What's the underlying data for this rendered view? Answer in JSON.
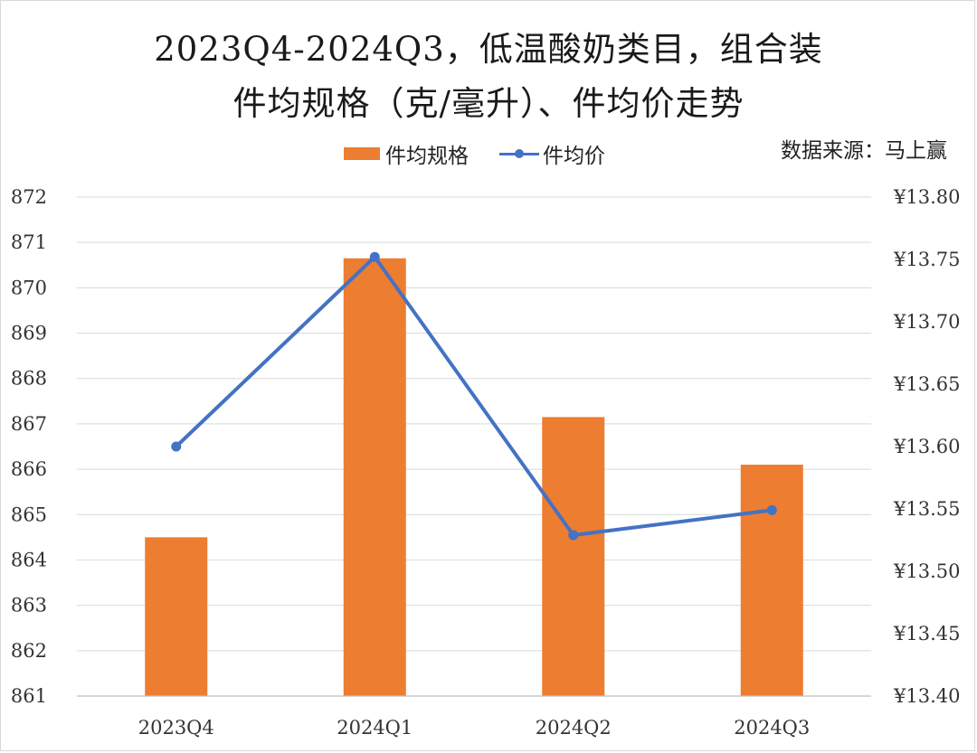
{
  "chart_data": {
    "type": "bar",
    "title": "2023Q4-2024Q3，低温酸奶类目，组合装",
    "subtitle": "件均规格（克/毫升）、件均价走势",
    "source_note": "数据来源：马上赢",
    "categories": [
      "2023Q4",
      "2024Q1",
      "2024Q2",
      "2024Q3"
    ],
    "series": [
      {
        "name": "件均规格",
        "type": "bar",
        "axis": "left",
        "color": "#ED7D31",
        "values": [
          864.5,
          870.65,
          867.15,
          866.1
        ]
      },
      {
        "name": "件均价",
        "type": "line",
        "axis": "right",
        "color": "#4472C4",
        "values": [
          13.6,
          13.752,
          13.529,
          13.549
        ]
      }
    ],
    "left_axis": {
      "min": 861,
      "max": 872,
      "step": 1,
      "tick_labels": [
        "861",
        "862",
        "863",
        "864",
        "865",
        "866",
        "867",
        "868",
        "869",
        "870",
        "871",
        "872"
      ]
    },
    "right_axis": {
      "min": 13.4,
      "max": 13.8,
      "step": 0.05,
      "tick_labels": [
        "¥13.40",
        "¥13.45",
        "¥13.50",
        "¥13.55",
        "¥13.60",
        "¥13.65",
        "¥13.70",
        "¥13.75",
        "¥13.80"
      ]
    },
    "grid": true,
    "legend_position": "top-center"
  }
}
